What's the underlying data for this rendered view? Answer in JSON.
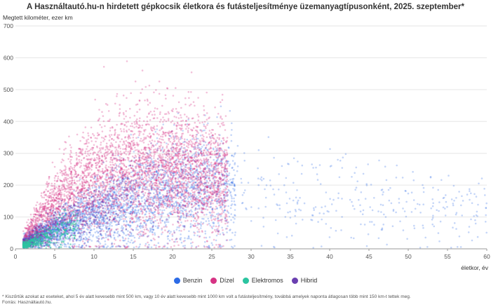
{
  "chart_data": {
    "type": "scatter",
    "title": "A Használtautó.hu-n hirdetett gépkocsik életkora és futásteljesítménye üzemanyagtípusonként, 2025. szeptember*",
    "ylabel": "Megtett kilométer, ezer km",
    "xlabel": "életkor, év",
    "xlim": [
      0,
      60
    ],
    "ylim": [
      0,
      700
    ],
    "xticks": [
      "0",
      "5",
      "10",
      "15",
      "20",
      "25",
      "30",
      "35",
      "40",
      "45",
      "50",
      "55",
      "60"
    ],
    "yticks": [
      "0",
      "100",
      "200",
      "300",
      "400",
      "500",
      "600",
      "700"
    ],
    "grid": "horizontal",
    "legend_position": "bottom",
    "series": [
      {
        "name": "Benzin",
        "color": "#2d6be6",
        "cloud": {
          "x_range": [
            1,
            60
          ],
          "y_max": 450,
          "density": "high 1-28 years"
        },
        "trend_points": [
          {
            "x": 1,
            "y": 20
          },
          {
            "x": 5,
            "y": 60
          },
          {
            "x": 10,
            "y": 110
          },
          {
            "x": 15,
            "y": 150
          },
          {
            "x": 20,
            "y": 180
          },
          {
            "x": 25,
            "y": 195
          },
          {
            "x": 30,
            "y": 190
          },
          {
            "x": 40,
            "y": 160
          },
          {
            "x": 50,
            "y": 140
          },
          {
            "x": 60,
            "y": 120
          }
        ]
      },
      {
        "name": "Dízel",
        "color": "#d63384",
        "cloud": {
          "x_range": [
            1,
            28
          ],
          "y_max": 640,
          "density": "high 5-25 years"
        },
        "trend_points": [
          {
            "x": 1,
            "y": 30
          },
          {
            "x": 5,
            "y": 140
          },
          {
            "x": 10,
            "y": 220
          },
          {
            "x": 15,
            "y": 250
          },
          {
            "x": 20,
            "y": 250
          },
          {
            "x": 25,
            "y": 230
          }
        ]
      },
      {
        "name": "Elektromos",
        "color": "#2bc4a0",
        "cloud": {
          "x_range": [
            1,
            8
          ],
          "y_max": 150,
          "density": "high 1-5 years"
        },
        "trend_points": [
          {
            "x": 1,
            "y": 10
          },
          {
            "x": 3,
            "y": 30
          },
          {
            "x": 5,
            "y": 50
          },
          {
            "x": 8,
            "y": 70
          }
        ]
      },
      {
        "name": "Hibrid",
        "color": "#6a3fb0",
        "cloud": {
          "x_range": [
            1,
            15
          ],
          "y_max": 300,
          "density": "high 1-6 years"
        },
        "trend_points": [
          {
            "x": 1,
            "y": 15
          },
          {
            "x": 3,
            "y": 40
          },
          {
            "x": 6,
            "y": 80
          },
          {
            "x": 10,
            "y": 120
          }
        ]
      }
    ]
  },
  "footnote": {
    "line1": "* Kiszűrtük azokat az eseteket, ahol 5 év alatt kevesebb mint 500 km, vagy 10 év alatt kevesebb mint 1000 km volt a futásteljesítmény, továbbá amelyek naponta átlagosan több mint 150 km-t tettek meg.",
    "line2": "Forrás: Használtautó.hu."
  }
}
